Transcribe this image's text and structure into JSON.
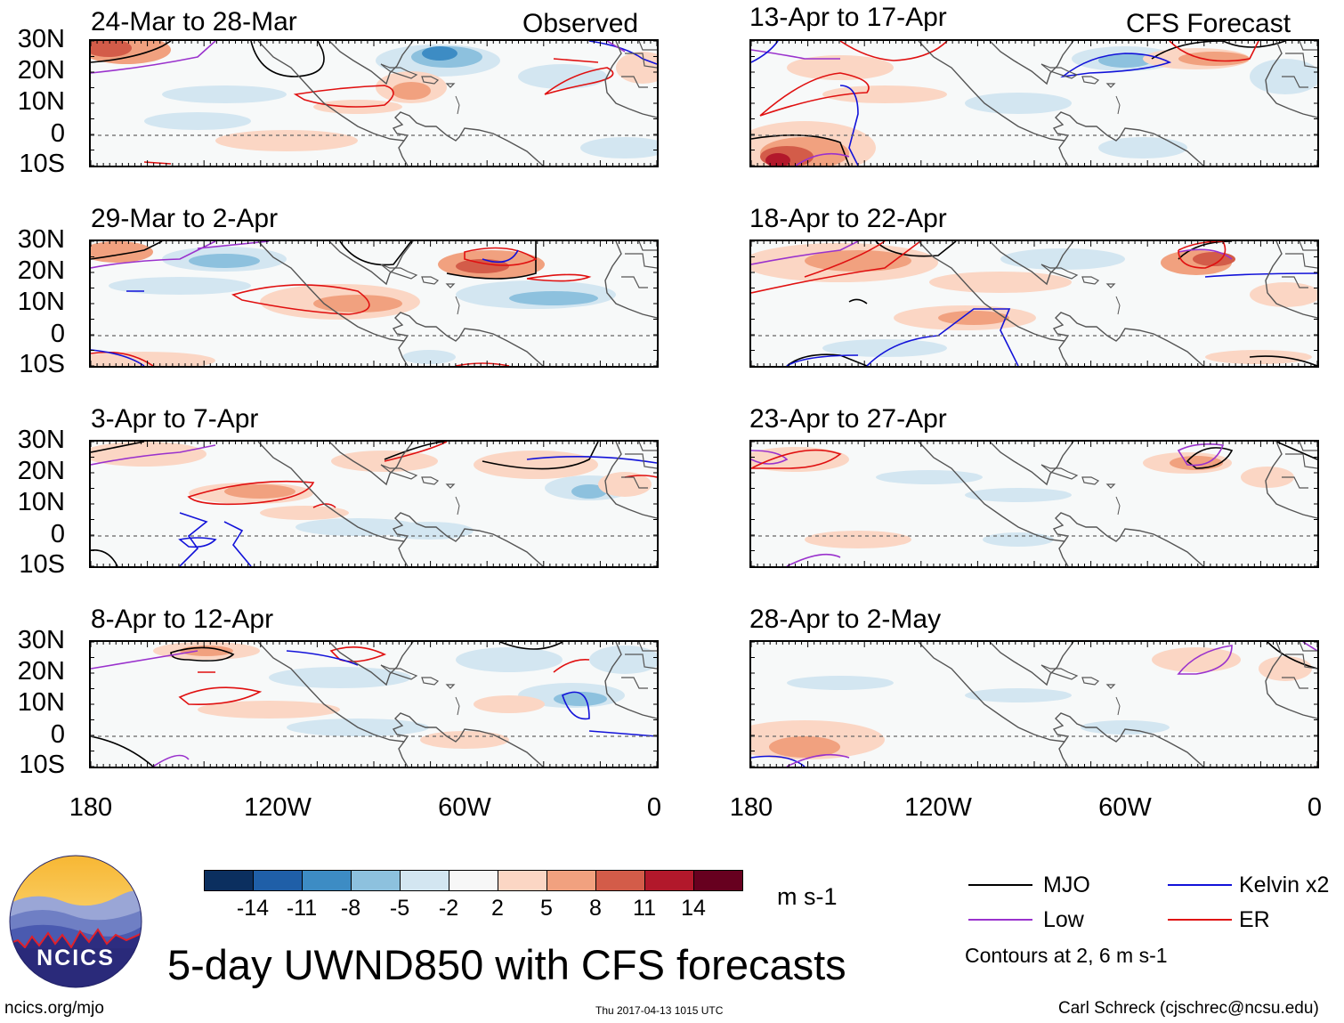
{
  "title": "5-day UWND850 with CFS forecasts",
  "columns": {
    "left_tag": "Observed",
    "right_tag": "CFS Forecast"
  },
  "panels": [
    {
      "title": "24-Mar to 28-Mar"
    },
    {
      "title": "29-Mar to 2-Apr"
    },
    {
      "title": "3-Apr to 7-Apr"
    },
    {
      "title": "8-Apr to 12-Apr"
    },
    {
      "title": "13-Apr to 17-Apr"
    },
    {
      "title": "18-Apr to 22-Apr"
    },
    {
      "title": "23-Apr to 27-Apr"
    },
    {
      "title": "28-Apr to 2-May"
    }
  ],
  "lat_labels": [
    "30N",
    "20N",
    "10N",
    "0",
    "10S"
  ],
  "lon_labels": [
    "180",
    "120W",
    "60W",
    "0"
  ],
  "colorbar": {
    "unit": "m s-1",
    "labels": [
      "-14",
      "-11",
      "-8",
      "-5",
      "-2",
      "2",
      "5",
      "8",
      "11",
      "14"
    ],
    "colors": [
      "#0b2f5f",
      "#1f5fa8",
      "#3d8cc4",
      "#8dc1de",
      "#d3e6f1",
      "#f7f7f7",
      "#fbd6c4",
      "#f1a17f",
      "#d35c49",
      "#b2182b",
      "#67001f"
    ]
  },
  "legend": {
    "items": [
      {
        "label": "MJO",
        "color": "#000000"
      },
      {
        "label": "Kelvin x2",
        "color": "#1212d9"
      },
      {
        "label": "Low",
        "color": "#9a32cd"
      },
      {
        "label": "ER",
        "color": "#e01010"
      }
    ],
    "note": "Contours at 2, 6 m s-1"
  },
  "footer": {
    "logo_text": "NCICS",
    "url": "ncics.org/mjo",
    "timestamp": "Thu 2017-04-13 1015 UTC",
    "credit": "Carl Schreck (cjschrec@ncsu.edu)"
  }
}
